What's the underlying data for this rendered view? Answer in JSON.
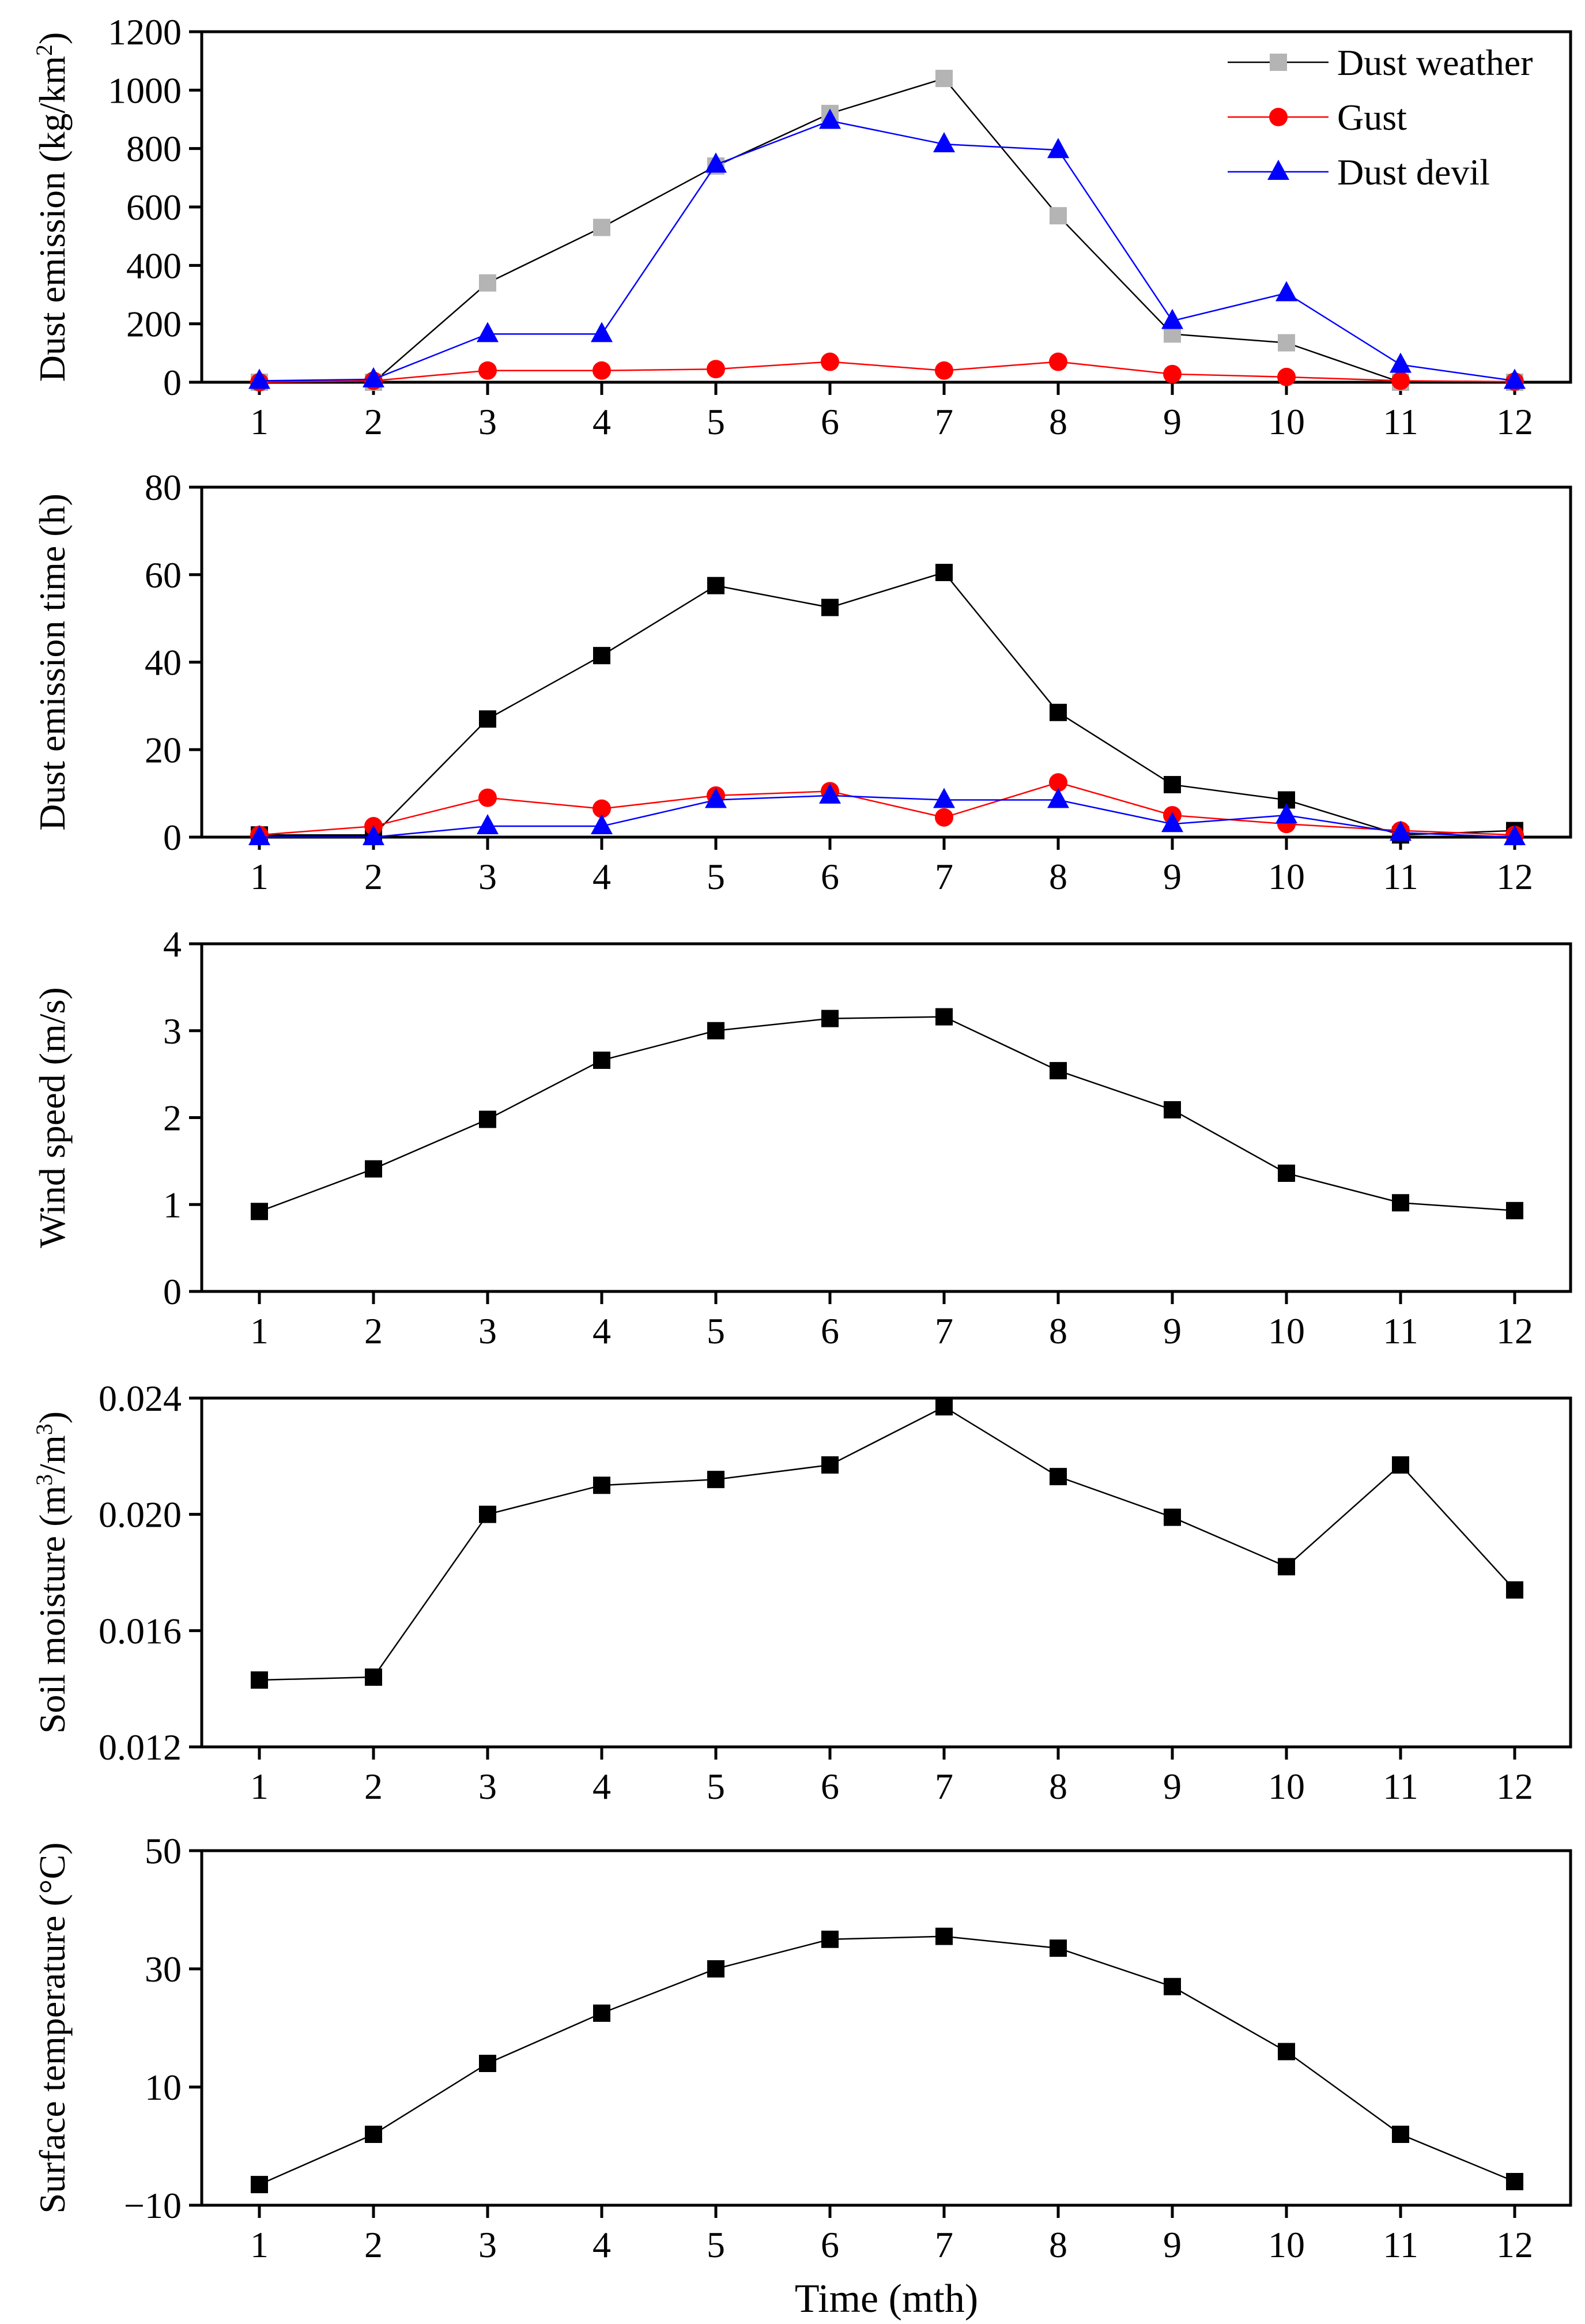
{
  "figure": {
    "xlabel": "Time (mth)"
  },
  "chart_data": [
    {
      "type": "line",
      "ylabel_parts": [
        "Dust emission (kg/km",
        "2",
        ")"
      ],
      "categories": [
        "1",
        "2",
        "3",
        "4",
        "5",
        "6",
        "7",
        "8",
        "9",
        "10",
        "11",
        "12"
      ],
      "ylim": [
        0,
        1200
      ],
      "yticks": [
        0,
        200,
        400,
        600,
        800,
        1000,
        1200
      ],
      "ytick_labels": [
        "0",
        "200",
        "400",
        "600",
        "800",
        "1000",
        "1200"
      ],
      "legend_position": "top-right",
      "series": [
        {
          "name": "Dust weather",
          "marker": "square",
          "color": "#b4b4b4",
          "line_color": "#000000",
          "values": [
            0,
            0,
            340,
            530,
            740,
            920,
            1040,
            570,
            165,
            135,
            0,
            0
          ]
        },
        {
          "name": "Gust",
          "marker": "circle",
          "color": "#ff0000",
          "line_color": "#ff0000",
          "values": [
            0,
            5,
            40,
            40,
            45,
            70,
            40,
            70,
            28,
            18,
            5,
            2
          ]
        },
        {
          "name": "Dust devil",
          "marker": "triangle",
          "color": "#0000ff",
          "line_color": "#0000ff",
          "values": [
            5,
            10,
            165,
            165,
            745,
            895,
            815,
            795,
            210,
            305,
            60,
            5
          ]
        }
      ]
    },
    {
      "type": "line",
      "ylabel_parts": [
        "Dust emission time (h)"
      ],
      "categories": [
        "1",
        "2",
        "3",
        "4",
        "5",
        "6",
        "7",
        "8",
        "9",
        "10",
        "11",
        "12"
      ],
      "ylim": [
        0,
        80
      ],
      "yticks": [
        0,
        20,
        40,
        60,
        80
      ],
      "ytick_labels": [
        "0",
        "20",
        "40",
        "60",
        "80"
      ],
      "series": [
        {
          "name": "Dust weather",
          "marker": "square",
          "color": "#000000",
          "line_color": "#000000",
          "values": [
            0.5,
            0.5,
            27,
            41.5,
            57.5,
            52.5,
            60.5,
            28.5,
            12,
            8.5,
            0.5,
            1.5
          ]
        },
        {
          "name": "Gust",
          "marker": "circle",
          "color": "#ff0000",
          "line_color": "#ff0000",
          "values": [
            0.5,
            2.5,
            9,
            6.5,
            9.5,
            10.5,
            4.5,
            12.5,
            5,
            3,
            1.5,
            0.5
          ]
        },
        {
          "name": "Dust devil",
          "marker": "triangle",
          "color": "#0000ff",
          "line_color": "#0000ff",
          "values": [
            0,
            0,
            2.5,
            2.5,
            8.5,
            9.5,
            8.5,
            8.5,
            3,
            5,
            1,
            0
          ]
        }
      ]
    },
    {
      "type": "line",
      "ylabel_parts": [
        "Wind speed (m/s)"
      ],
      "categories": [
        "1",
        "2",
        "3",
        "4",
        "5",
        "6",
        "7",
        "8",
        "9",
        "10",
        "11",
        "12"
      ],
      "ylim": [
        0,
        4
      ],
      "yticks": [
        0,
        1,
        2,
        3,
        4
      ],
      "ytick_labels": [
        "0",
        "1",
        "2",
        "3",
        "4"
      ],
      "series": [
        {
          "name": "Wind speed",
          "marker": "square",
          "color": "#000000",
          "line_color": "#000000",
          "values": [
            0.92,
            1.41,
            1.98,
            2.66,
            3.0,
            3.14,
            3.16,
            2.54,
            2.09,
            1.36,
            1.02,
            0.93
          ]
        }
      ]
    },
    {
      "type": "line",
      "ylabel_parts": [
        "Soil moisture (m",
        "3",
        "/m",
        "3",
        ")"
      ],
      "categories": [
        "1",
        "2",
        "3",
        "4",
        "5",
        "6",
        "7",
        "8",
        "9",
        "10",
        "11",
        "12"
      ],
      "ylim": [
        0.012,
        0.024
      ],
      "yticks": [
        0.012,
        0.016,
        0.02,
        0.024
      ],
      "ytick_labels": [
        "0.012",
        "0.016",
        "0.020",
        "0.024"
      ],
      "series": [
        {
          "name": "Soil moisture",
          "marker": "square",
          "color": "#000000",
          "line_color": "#000000",
          "values": [
            0.0143,
            0.0144,
            0.02,
            0.021,
            0.0212,
            0.0217,
            0.0237,
            0.0213,
            0.0199,
            0.0182,
            0.0217,
            0.0174
          ]
        }
      ]
    },
    {
      "type": "line",
      "ylabel_parts": [
        "Surface temperature (°C)"
      ],
      "categories": [
        "1",
        "2",
        "3",
        "4",
        "5",
        "6",
        "7",
        "8",
        "9",
        "10",
        "11",
        "12"
      ],
      "ylim": [
        -10,
        50
      ],
      "yticks": [
        -10,
        10,
        30,
        50
      ],
      "ytick_labels": [
        "−10",
        "10",
        "30",
        "50"
      ],
      "series": [
        {
          "name": "Surface temperature",
          "marker": "square",
          "color": "#000000",
          "line_color": "#000000",
          "values": [
            -6.5,
            2,
            14,
            22.5,
            30,
            35,
            35.5,
            33.5,
            27,
            16,
            2,
            -6
          ]
        }
      ]
    }
  ]
}
